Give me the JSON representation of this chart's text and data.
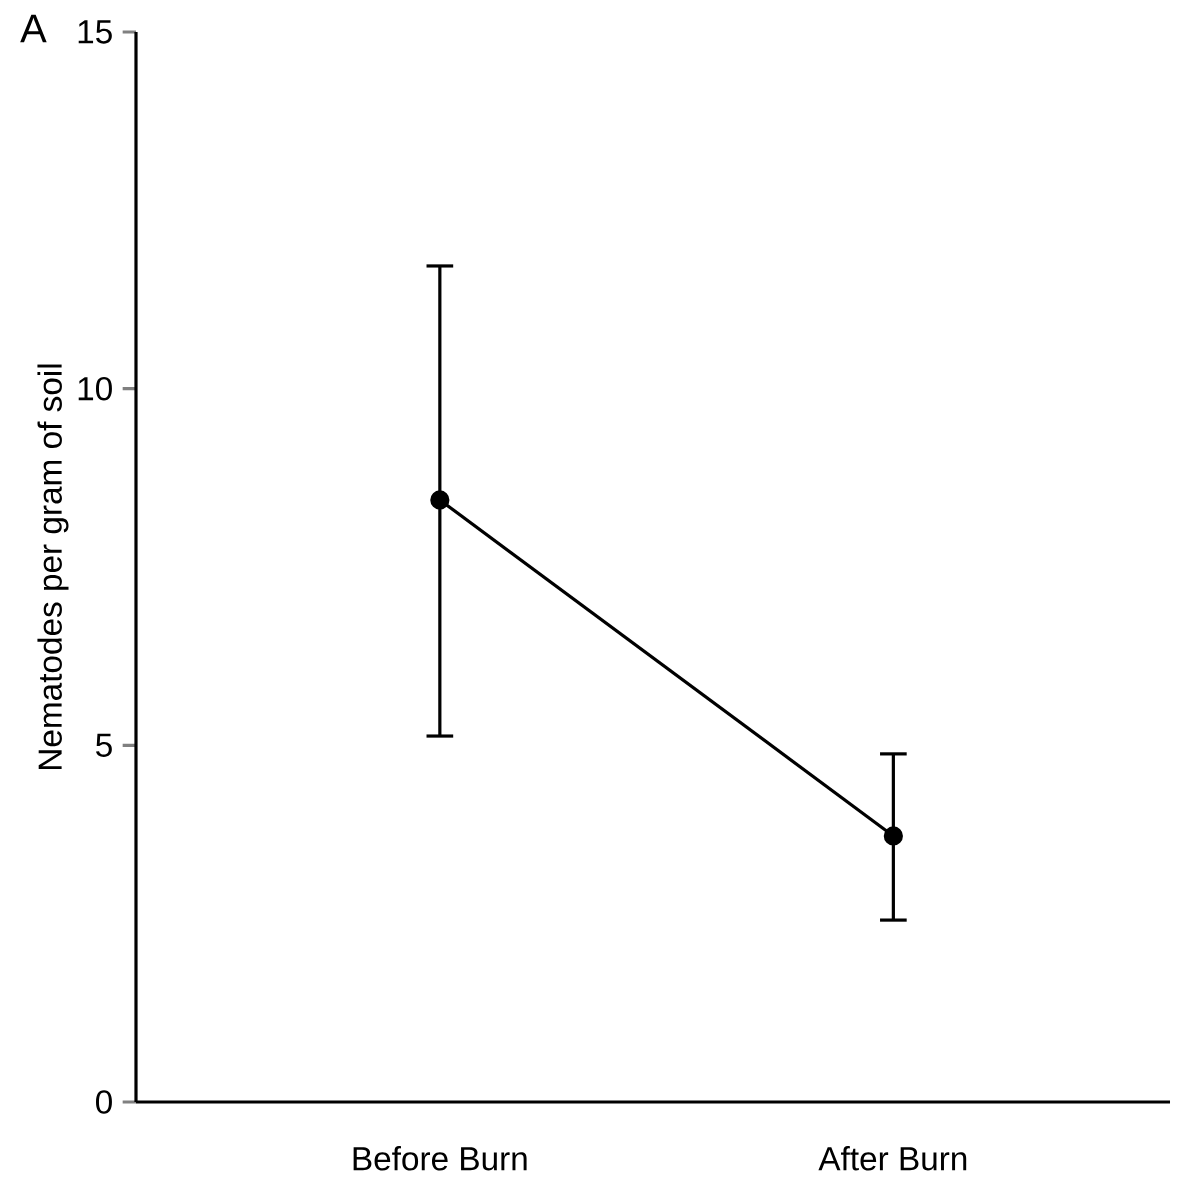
{
  "chart_data": {
    "type": "line",
    "ylabel": "Nematodes  per gram of soil",
    "categories": [
      "Before Burn",
      "After Burn"
    ],
    "series": [
      {
        "color": "#000000",
        "values": [
          8.44,
          3.73
        ],
        "errors": [
          [
            5.13,
            11.72
          ],
          [
            2.55,
            4.88
          ]
        ]
      }
    ],
    "ylim": [
      0,
      15
    ],
    "yticks": [
      0,
      5,
      10,
      15
    ],
    "marker": "circle",
    "line_style": "solid",
    "annotations": [
      "A"
    ]
  }
}
